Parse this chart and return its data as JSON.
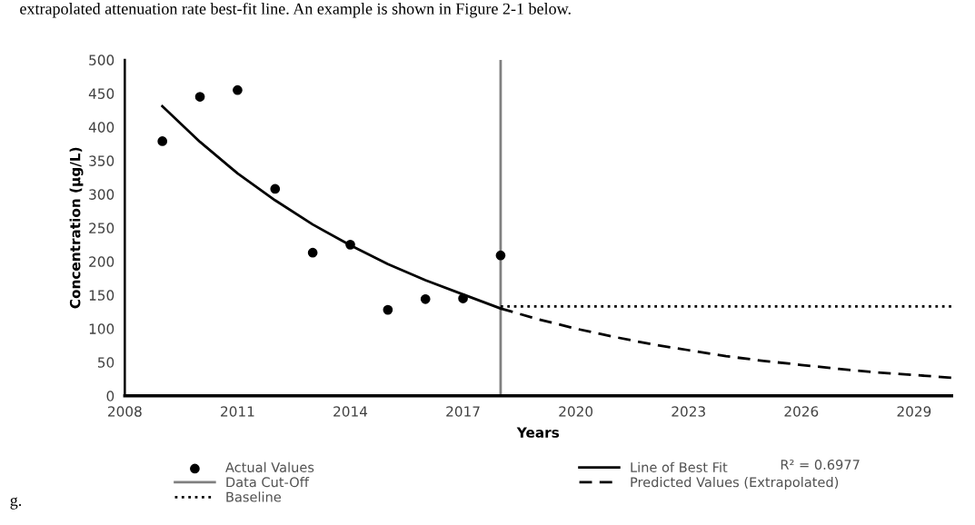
{
  "chart_data": {
    "type": "scatter",
    "xlabel": "Years",
    "ylabel": "Concentration (µg/L)",
    "xlim": [
      2008,
      2030
    ],
    "xticks": [
      2008,
      2011,
      2014,
      2017,
      2020,
      2023,
      2026,
      2029
    ],
    "ylim": [
      0,
      500
    ],
    "yticks": [
      0,
      50,
      100,
      150,
      200,
      250,
      300,
      350,
      400,
      450,
      500
    ],
    "grid": false,
    "legend": "bottom",
    "series": [
      {
        "name": "Actual Values",
        "marker": "circle",
        "color": "#000000",
        "x": [
          2009,
          2010,
          2011,
          2012,
          2013,
          2014,
          2015,
          2016,
          2017,
          2018
        ],
        "values": [
          379,
          445,
          455,
          308,
          213,
          225,
          128,
          144,
          145,
          209
        ]
      },
      {
        "name": "Line of Best Fit",
        "type": "line",
        "line_style": "solid",
        "color": "#000000",
        "x": [
          2009,
          2010,
          2011,
          2012,
          2013,
          2014,
          2015,
          2016,
          2017,
          2018
        ],
        "values": [
          431,
          378,
          331,
          291,
          255,
          224,
          196,
          172,
          151,
          130
        ]
      },
      {
        "name": "Predicted Values (Extrapolated)",
        "type": "line",
        "line_style": "dashed",
        "color": "#000000",
        "x": [
          2018,
          2019,
          2020,
          2021,
          2022,
          2023,
          2024,
          2025,
          2026,
          2027,
          2028,
          2029,
          2030
        ],
        "values": [
          130,
          114,
          100,
          88,
          77,
          68,
          59,
          52,
          46,
          40,
          35,
          31,
          27
        ]
      },
      {
        "name": "Baseline",
        "type": "line",
        "line_style": "dotted",
        "color": "#000000",
        "x": [
          2018,
          2030
        ],
        "values": [
          133,
          133
        ]
      }
    ],
    "ref_lines": [
      {
        "axis": "x",
        "value": 2018,
        "label": "Data Cut-Off",
        "color": "#808080",
        "line_style": "solid"
      }
    ],
    "annotations": [
      "R² = 0.6977",
      "extrapolated attenuation rate best-fit line. An example is shown in Figure 2-1 below.",
      "g."
    ]
  }
}
